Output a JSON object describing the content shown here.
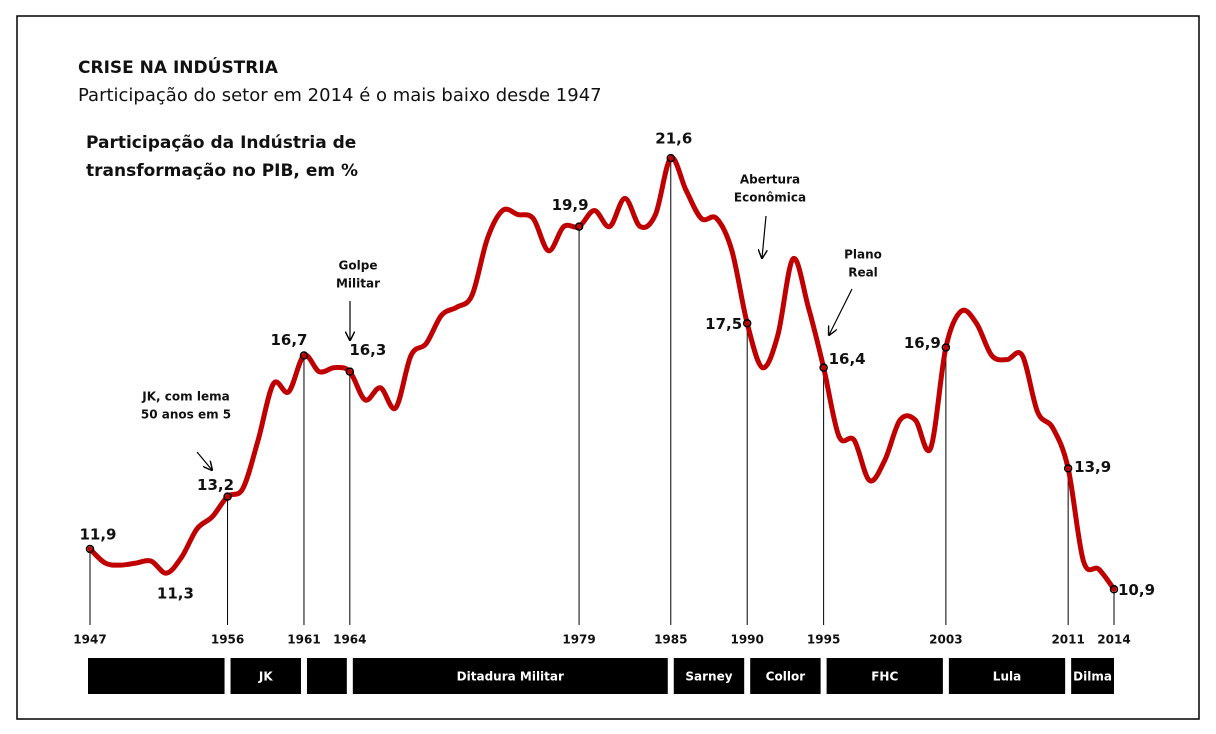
{
  "chart_data": {
    "type": "line",
    "title": "CRISE NA INDÚSTRIA",
    "subtitle": "Participação do setor em 2014 é o mais baixo desde 1947",
    "y_label": [
      "Participação da Indústria de",
      "transformação no PIB, em %"
    ],
    "x": [
      1947,
      1948,
      1949,
      1950,
      1951,
      1952,
      1953,
      1954,
      1955,
      1956,
      1957,
      1958,
      1959,
      1960,
      1961,
      1962,
      1963,
      1964,
      1965,
      1966,
      1967,
      1968,
      1969,
      1970,
      1971,
      1972,
      1973,
      1974,
      1975,
      1976,
      1977,
      1978,
      1979,
      1980,
      1981,
      1982,
      1983,
      1984,
      1985,
      1986,
      1987,
      1988,
      1989,
      1990,
      1991,
      1992,
      1993,
      1994,
      1995,
      1996,
      1997,
      1998,
      1999,
      2000,
      2001,
      2002,
      2003,
      2004,
      2005,
      2006,
      2007,
      2008,
      2009,
      2010,
      2011,
      2012,
      2013,
      2014
    ],
    "values": [
      11.9,
      11.55,
      11.5,
      11.55,
      11.6,
      11.3,
      11.7,
      12.4,
      12.7,
      13.2,
      13.4,
      14.6,
      16.0,
      15.8,
      16.7,
      16.3,
      16.4,
      16.3,
      15.6,
      15.9,
      15.4,
      16.7,
      17.0,
      17.7,
      17.9,
      18.2,
      19.6,
      20.3,
      20.2,
      20.1,
      19.3,
      19.9,
      19.9,
      20.3,
      19.9,
      20.6,
      19.9,
      20.2,
      21.6,
      20.8,
      20.1,
      20.1,
      19.3,
      17.5,
      16.4,
      17.2,
      19.1,
      17.9,
      16.4,
      14.7,
      14.6,
      13.6,
      14.1,
      15.1,
      15.1,
      14.4,
      16.9,
      17.8,
      17.5,
      16.7,
      16.6,
      16.7,
      15.3,
      14.9,
      13.9,
      11.6,
      11.4,
      10.9
    ],
    "color": "#c00000",
    "xlim": [
      1947,
      2014
    ],
    "ylim": [
      10.5,
      22.5
    ],
    "xticks": [
      1947,
      1956,
      1961,
      1964,
      1979,
      1985,
      1990,
      1995,
      2003,
      2011,
      2014
    ],
    "point_labels": [
      {
        "x": 1947,
        "label": "11,9"
      },
      {
        "x": 1952,
        "label": "11,3"
      },
      {
        "x": 1956,
        "label": "13,2"
      },
      {
        "x": 1961,
        "label": "16,7"
      },
      {
        "x": 1964,
        "label": "16,3"
      },
      {
        "x": 1979,
        "label": "19,9"
      },
      {
        "x": 1985,
        "label": "21,6"
      },
      {
        "x": 1990,
        "label": "17,5"
      },
      {
        "x": 1995,
        "label": "16,4"
      },
      {
        "x": 2003,
        "label": "16,9"
      },
      {
        "x": 2011,
        "label": "13,9"
      },
      {
        "x": 2014,
        "label": "10,9"
      }
    ],
    "annotations": [
      {
        "lines": [
          "JK, com lema",
          "50 anos em 5"
        ]
      },
      {
        "lines": [
          "Golpe",
          "Militar"
        ]
      },
      {
        "lines": [
          "Abertura",
          "Econômica"
        ]
      },
      {
        "lines": [
          "Plano",
          "Real"
        ]
      }
    ],
    "periods": [
      {
        "start": 1947,
        "end": 1956
      },
      {
        "start": 1956,
        "end": 1961,
        "label": "JK"
      },
      {
        "start": 1961,
        "end": 1964
      },
      {
        "start": 1964,
        "end": 1985,
        "label": "Ditadura Militar"
      },
      {
        "start": 1985,
        "end": 1990,
        "label": "Sarney"
      },
      {
        "start": 1990,
        "end": 1995,
        "label": "Collor"
      },
      {
        "start": 1995,
        "end": 2003,
        "label": "FHC"
      },
      {
        "start": 2003,
        "end": 2011,
        "label": "Lula"
      },
      {
        "start": 2011,
        "end": 2014,
        "label": "Dilma"
      }
    ]
  }
}
